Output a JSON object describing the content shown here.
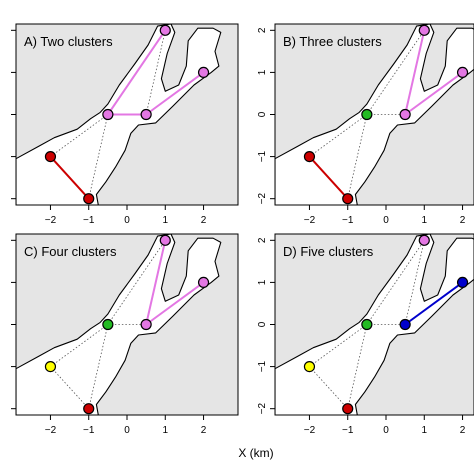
{
  "chart_data": {
    "type": "scatter",
    "xlabel": "X (km)",
    "x_ticks": [
      -2,
      -1,
      0,
      1,
      2
    ],
    "y_ticks": [
      2,
      1,
      0,
      -1,
      -2
    ],
    "xlim": [
      -2.9,
      2.9
    ],
    "ylim": [
      -2.15,
      2.15
    ],
    "nodes": [
      {
        "id": "n1",
        "x": -2,
        "y": -1
      },
      {
        "id": "n2",
        "x": -1,
        "y": -2
      },
      {
        "id": "n3",
        "x": -0.5,
        "y": 0
      },
      {
        "id": "n4",
        "x": 0.5,
        "y": 0
      },
      {
        "id": "n5",
        "x": 1,
        "y": 2
      },
      {
        "id": "n6",
        "x": 2,
        "y": 1
      }
    ],
    "network_edges": [
      [
        "n1",
        "n2"
      ],
      [
        "n1",
        "n3"
      ],
      [
        "n2",
        "n3"
      ],
      [
        "n3",
        "n4"
      ],
      [
        "n3",
        "n5"
      ],
      [
        "n4",
        "n5"
      ],
      [
        "n4",
        "n6"
      ]
    ],
    "colors": {
      "red": "#cc0000",
      "violet": "#e377e3",
      "green": "#22bb22",
      "yellow": "#ffff00",
      "blue": "#0000cc"
    },
    "panels": [
      {
        "title": "A) Two clusters",
        "node_colors": {
          "n1": "#cc0000",
          "n2": "#cc0000",
          "n3": "#e377e3",
          "n4": "#e377e3",
          "n5": "#e377e3",
          "n6": "#e377e3"
        },
        "cluster_edges": [
          {
            "from": "n1",
            "to": "n2",
            "color": "#cc0000"
          },
          {
            "from": "n3",
            "to": "n4",
            "color": "#e377e3"
          },
          {
            "from": "n3",
            "to": "n5",
            "color": "#e377e3"
          },
          {
            "from": "n4",
            "to": "n6",
            "color": "#e377e3"
          }
        ]
      },
      {
        "title": "B) Three clusters",
        "node_colors": {
          "n1": "#cc0000",
          "n2": "#cc0000",
          "n3": "#22bb22",
          "n4": "#e377e3",
          "n5": "#e377e3",
          "n6": "#e377e3"
        },
        "cluster_edges": [
          {
            "from": "n1",
            "to": "n2",
            "color": "#cc0000"
          },
          {
            "from": "n4",
            "to": "n5",
            "color": "#e377e3"
          },
          {
            "from": "n4",
            "to": "n6",
            "color": "#e377e3"
          }
        ]
      },
      {
        "title": "C) Four clusters",
        "node_colors": {
          "n1": "#ffff00",
          "n2": "#cc0000",
          "n3": "#22bb22",
          "n4": "#e377e3",
          "n5": "#e377e3",
          "n6": "#e377e3"
        },
        "cluster_edges": [
          {
            "from": "n4",
            "to": "n5",
            "color": "#e377e3"
          },
          {
            "from": "n4",
            "to": "n6",
            "color": "#e377e3"
          }
        ]
      },
      {
        "title": "D) Five clusters",
        "node_colors": {
          "n1": "#ffff00",
          "n2": "#cc0000",
          "n3": "#22bb22",
          "n4": "#0000cc",
          "n5": "#e377e3",
          "n6": "#0000cc"
        },
        "cluster_edges": [
          {
            "from": "n4",
            "to": "n6",
            "color": "#0000cc"
          }
        ]
      }
    ],
    "coastline": [
      [
        -2.9,
        -1.05
      ],
      [
        -2.3,
        -0.75
      ],
      [
        -1.9,
        -0.55
      ],
      [
        -1.3,
        -0.35
      ],
      [
        -0.95,
        -0.1
      ],
      [
        -0.7,
        0.05
      ],
      [
        -0.5,
        0.25
      ],
      [
        -0.2,
        0.7
      ],
      [
        0.2,
        1.2
      ],
      [
        0.55,
        1.65
      ],
      [
        0.8,
        2.1
      ],
      [
        1.15,
        2.15
      ],
      [
        1.25,
        1.95
      ],
      [
        1.05,
        1.45
      ],
      [
        0.9,
        0.85
      ],
      [
        1.0,
        0.55
      ],
      [
        1.35,
        0.7
      ],
      [
        1.55,
        1.15
      ],
      [
        1.6,
        1.75
      ],
      [
        1.85,
        2.05
      ],
      [
        2.25,
        2.05
      ],
      [
        2.45,
        1.95
      ],
      [
        2.3,
        1.5
      ],
      [
        2.4,
        1.15
      ],
      [
        2.2,
        1.0
      ],
      [
        1.75,
        0.7
      ],
      [
        1.2,
        0.2
      ],
      [
        0.75,
        -0.2
      ],
      [
        0.3,
        -0.25
      ],
      [
        0.1,
        -0.45
      ],
      [
        -0.05,
        -0.85
      ],
      [
        -0.3,
        -1.25
      ],
      [
        -0.55,
        -1.6
      ],
      [
        -0.8,
        -1.9
      ],
      [
        -0.75,
        -2.15
      ],
      [
        -2.9,
        -2.15
      ]
    ]
  }
}
